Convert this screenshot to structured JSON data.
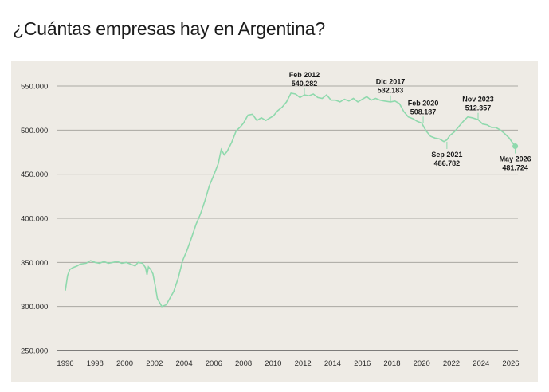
{
  "title": "¿Cuántas empresas hay en Argentina?",
  "colors": {
    "line": "#8fd9ad",
    "panel": "#eeebe5",
    "grid": "#a9a8a2"
  },
  "chart_data": {
    "type": "line",
    "title": "¿Cuántas empresas hay en Argentina?",
    "xlabel": "",
    "ylabel": "",
    "grid": true,
    "x_ticks": [
      "1996",
      "1998",
      "2000",
      "2002",
      "2004",
      "2006",
      "2008",
      "2010",
      "2012",
      "2014",
      "2016",
      "2018",
      "2020",
      "2022",
      "2024",
      "2026"
    ],
    "y_ticks": [
      "250.000",
      "300.000",
      "350.000",
      "400.000",
      "450.000",
      "500.000",
      "550.000"
    ],
    "ylim": [
      250000,
      550000
    ],
    "xlim": [
      1996,
      2026.4
    ],
    "series": [
      {
        "x": [
          1996.0,
          1996.15,
          1996.3,
          1996.5,
          1996.8,
          1997.0,
          1997.4,
          1997.7,
          1998.0,
          1998.3,
          1998.6,
          1998.9,
          1999.2,
          1999.5,
          1999.8,
          2000.1,
          2000.4,
          2000.7,
          2000.9,
          2001.2,
          2001.4,
          2001.5,
          2001.6,
          2001.75,
          2001.9,
          2002.05,
          2002.2,
          2002.5,
          2002.8,
          2003.0,
          2003.3,
          2003.6,
          2003.9,
          2004.2,
          2004.5,
          2004.8,
          2005.1,
          2005.4,
          2005.7,
          2006.0,
          2006.3,
          2006.5,
          2006.7,
          2006.9,
          2007.2,
          2007.5,
          2007.8,
          2008.0,
          2008.3,
          2008.6,
          2008.9,
          2009.2,
          2009.5,
          2009.8,
          2010.0,
          2010.3,
          2010.6,
          2010.9,
          2011.2,
          2011.5,
          2011.8,
          2012.1,
          2012.4,
          2012.7,
          2013.0,
          2013.3,
          2013.6,
          2013.9,
          2014.2,
          2014.5,
          2014.8,
          2015.1,
          2015.4,
          2015.7,
          2016.0,
          2016.3,
          2016.6,
          2016.9,
          2017.2,
          2017.5,
          2017.9,
          2018.2,
          2018.5,
          2018.8,
          2019.1,
          2019.4,
          2019.7,
          2020.0,
          2020.1,
          2020.3,
          2020.6,
          2020.9,
          2021.2,
          2021.5,
          2021.7,
          2021.9,
          2022.2,
          2022.5,
          2022.8,
          2023.1,
          2023.4,
          2023.8,
          2024.1,
          2024.4,
          2024.7,
          2025.0,
          2025.3,
          2025.6,
          2025.9,
          2026.1,
          2026.3
        ],
        "values": [
          318000,
          335000,
          342000,
          344000,
          346000,
          348000,
          349000,
          352000,
          350000,
          349000,
          351000,
          349000,
          350000,
          351000,
          349000,
          350000,
          348000,
          346000,
          350000,
          349000,
          344000,
          336000,
          345000,
          342000,
          337000,
          324000,
          309000,
          300000,
          302000,
          308000,
          317000,
          332000,
          352000,
          364000,
          378000,
          393000,
          405000,
          420000,
          437000,
          449000,
          462000,
          478000,
          472000,
          476000,
          486000,
          499000,
          504000,
          508000,
          517000,
          518000,
          511000,
          514000,
          511000,
          514000,
          516000,
          522000,
          526000,
          532000,
          542000,
          541000,
          537000,
          540000,
          539000,
          541000,
          537000,
          536000,
          540000,
          534000,
          534000,
          532000,
          535000,
          533000,
          536000,
          532000,
          535000,
          538000,
          534000,
          536000,
          534000,
          533000,
          532000,
          533000,
          530000,
          521000,
          515000,
          513000,
          510000,
          508000,
          505000,
          499000,
          493000,
          491000,
          490000,
          487000,
          489000,
          494000,
          498000,
          504000,
          510000,
          515000,
          514000,
          512000,
          507000,
          506000,
          503000,
          503000,
          500000,
          496000,
          491000,
          486000,
          481724
        ]
      }
    ],
    "annotations": [
      {
        "label": "Feb 2012",
        "value": "540.282",
        "x": 2012.1,
        "y": 540282,
        "position": "above"
      },
      {
        "label": "Dic 2017",
        "value": "532.183",
        "x": 2017.9,
        "y": 532183,
        "position": "above"
      },
      {
        "label": "Feb 2020",
        "value": "508.187",
        "x": 2020.1,
        "y": 508187,
        "position": "above"
      },
      {
        "label": "Sep 2021",
        "value": "486.782",
        "x": 2021.7,
        "y": 486782,
        "position": "below"
      },
      {
        "label": "Nov 2023",
        "value": "512.357",
        "x": 2023.8,
        "y": 512357,
        "position": "above"
      },
      {
        "label": "May 2026",
        "value": "481.724",
        "x": 2026.3,
        "y": 481724,
        "position": "below"
      }
    ]
  }
}
